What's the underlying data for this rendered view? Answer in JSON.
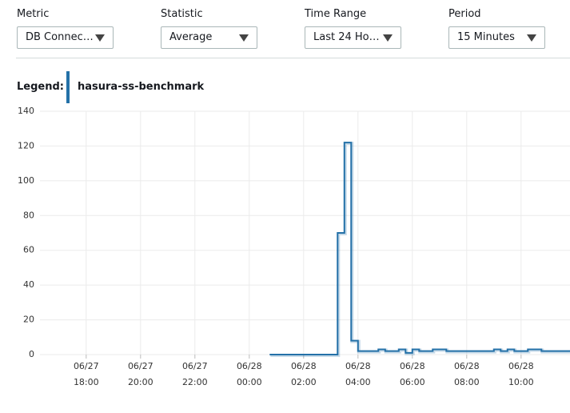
{
  "controls": [
    {
      "label": "Metric",
      "value": "DB Connec…"
    },
    {
      "label": "Statistic",
      "value": "Average"
    },
    {
      "label": "Time Range",
      "value": "Last 24 Ho…"
    },
    {
      "label": "Period",
      "value": "15 Minutes"
    }
  ],
  "legend": {
    "label": "Legend:"
  },
  "chart_data": {
    "type": "line",
    "step": "post",
    "x": [
      "06/28 00:45",
      "06/28 01:00",
      "06/28 01:15",
      "06/28 01:30",
      "06/28 01:45",
      "06/28 02:00",
      "06/28 02:15",
      "06/28 02:30",
      "06/28 02:45",
      "06/28 03:00",
      "06/28 03:15",
      "06/28 03:30",
      "06/28 03:45",
      "06/28 04:00",
      "06/28 04:15",
      "06/28 04:30",
      "06/28 04:45",
      "06/28 05:00",
      "06/28 05:15",
      "06/28 05:30",
      "06/28 05:45",
      "06/28 06:00",
      "06/28 06:15",
      "06/28 06:30",
      "06/28 06:45",
      "06/28 07:00",
      "06/28 07:15",
      "06/28 07:30",
      "06/28 07:45",
      "06/28 08:00",
      "06/28 08:15",
      "06/28 08:30",
      "06/28 08:45",
      "06/28 09:00",
      "06/28 09:15",
      "06/28 09:30",
      "06/28 09:45",
      "06/28 10:00",
      "06/28 10:15",
      "06/28 10:30",
      "06/28 10:45",
      "06/28 11:00",
      "06/28 11:15",
      "06/28 11:30",
      "06/28 11:45"
    ],
    "series": [
      {
        "name": "hasura-ss-benchmark",
        "color": "#2471a8",
        "values": [
          0,
          0,
          0,
          0,
          0,
          0,
          0,
          0,
          0,
          0,
          70,
          122,
          8,
          2,
          2,
          2,
          3,
          2,
          2,
          3,
          1,
          3,
          2,
          2,
          3,
          3,
          2,
          2,
          2,
          2,
          2,
          2,
          2,
          3,
          2,
          3,
          2,
          2,
          3,
          3,
          2,
          2,
          2,
          2,
          2
        ]
      }
    ],
    "xlim": [
      "06/27 16:18",
      "06/28 11:48"
    ],
    "xticks": [
      "06/27 18:00",
      "06/27 20:00",
      "06/27 22:00",
      "06/28 00:00",
      "06/28 02:00",
      "06/28 04:00",
      "06/28 06:00",
      "06/28 08:00",
      "06/28 10:00"
    ],
    "ylim": [
      0,
      140
    ],
    "yticks": [
      0,
      20,
      40,
      60,
      80,
      100,
      120,
      140
    ],
    "grid": true
  }
}
